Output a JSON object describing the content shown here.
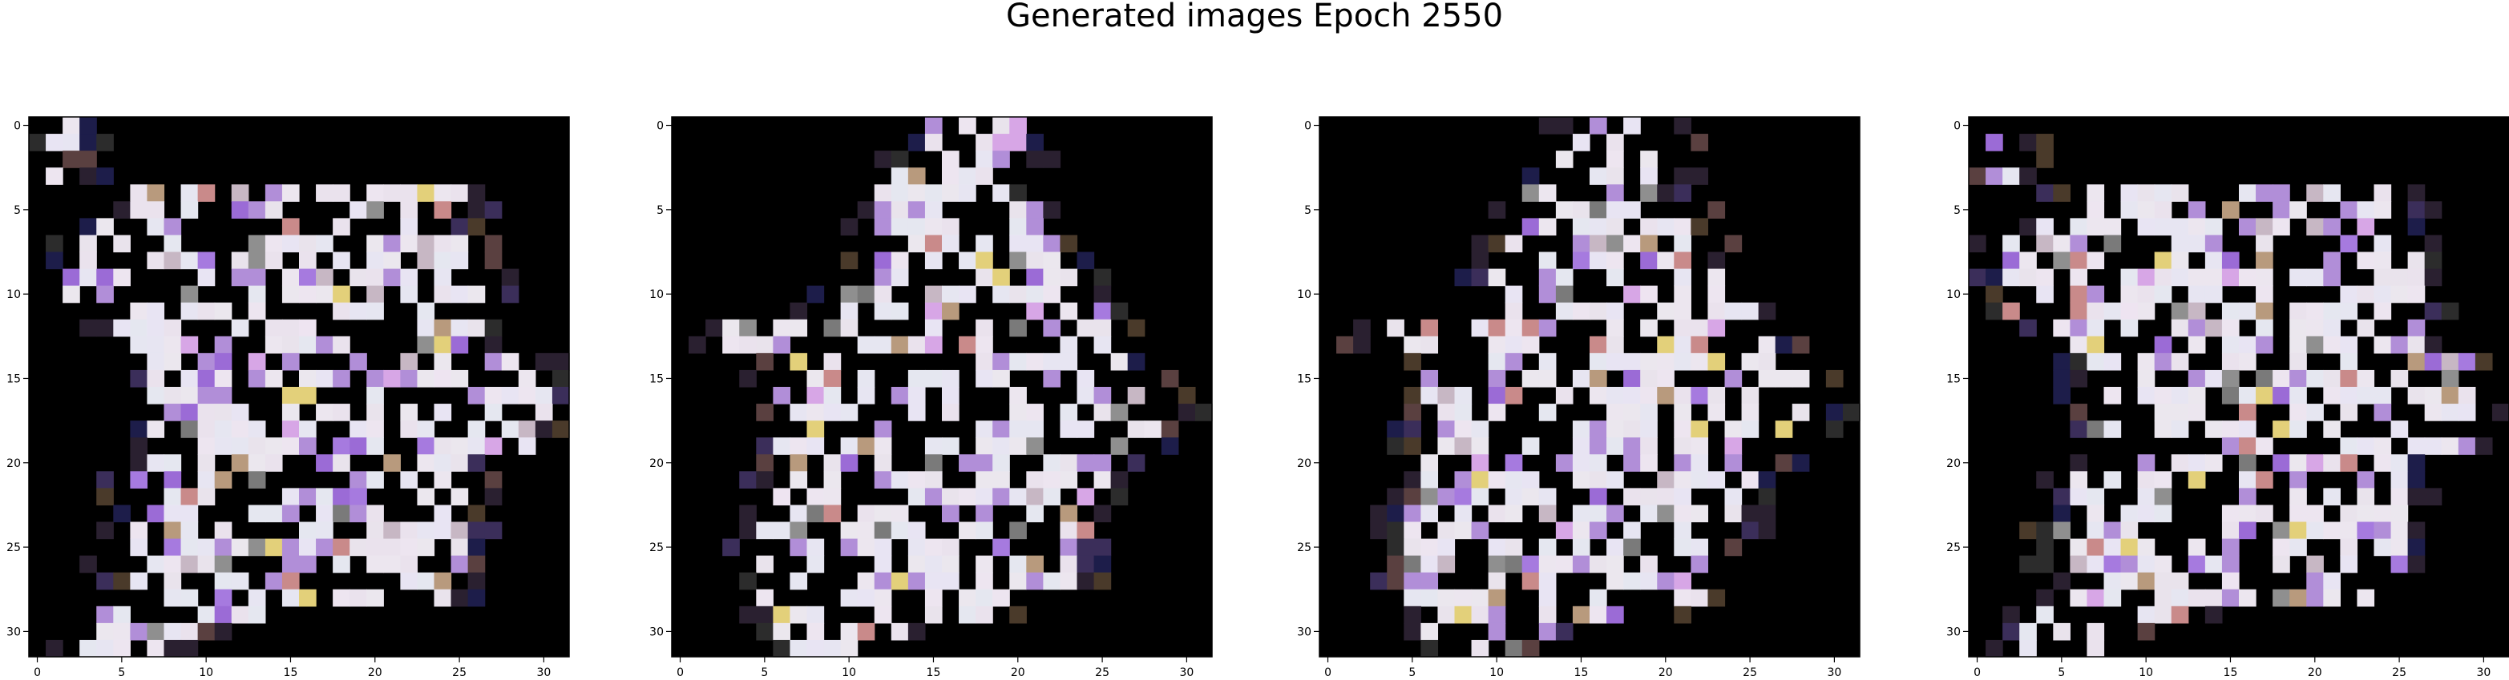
{
  "figure": {
    "title": "Generated images Epoch 2550"
  },
  "chart_data": [
    {
      "type": "heatmap",
      "title": "",
      "xlabel": "",
      "ylabel": "",
      "grid_size": [
        32,
        32
      ],
      "xlim": [
        -0.5,
        31.5
      ],
      "ylim": [
        31.5,
        -0.5
      ],
      "x_ticks": [
        "0",
        "5",
        "10",
        "15",
        "20",
        "25",
        "30"
      ],
      "y_ticks": [
        "0",
        "5",
        "10",
        "15",
        "20",
        "25",
        "30"
      ],
      "background_color": "#000000",
      "blob_color": "#f6ecf7",
      "shape_variant": "A"
    },
    {
      "type": "heatmap",
      "title": "",
      "xlabel": "",
      "ylabel": "",
      "grid_size": [
        32,
        32
      ],
      "xlim": [
        -0.5,
        31.5
      ],
      "ylim": [
        31.5,
        -0.5
      ],
      "x_ticks": [
        "0",
        "5",
        "10",
        "15",
        "20",
        "25",
        "30"
      ],
      "y_ticks": [
        "0",
        "5",
        "10",
        "15",
        "20",
        "25",
        "30"
      ],
      "background_color": "#000000",
      "blob_color": "#f6ecf7",
      "shape_variant": "B"
    },
    {
      "type": "heatmap",
      "title": "",
      "xlabel": "",
      "ylabel": "",
      "grid_size": [
        32,
        32
      ],
      "xlim": [
        -0.5,
        31.5
      ],
      "ylim": [
        31.5,
        -0.5
      ],
      "x_ticks": [
        "0",
        "5",
        "10",
        "15",
        "20",
        "25",
        "30"
      ],
      "y_ticks": [
        "0",
        "5",
        "10",
        "15",
        "20",
        "25",
        "30"
      ],
      "background_color": "#000000",
      "blob_color": "#f6ecf7",
      "shape_variant": "B"
    },
    {
      "type": "heatmap",
      "title": "",
      "xlabel": "",
      "ylabel": "",
      "grid_size": [
        32,
        32
      ],
      "xlim": [
        -0.5,
        31.5
      ],
      "ylim": [
        31.5,
        -0.5
      ],
      "x_ticks": [
        "0",
        "5",
        "10",
        "15",
        "20",
        "25",
        "30"
      ],
      "y_ticks": [
        "0",
        "5",
        "10",
        "15",
        "20",
        "25",
        "30"
      ],
      "background_color": "#000000",
      "blob_color": "#f6ecf7",
      "shape_variant": "A"
    }
  ]
}
